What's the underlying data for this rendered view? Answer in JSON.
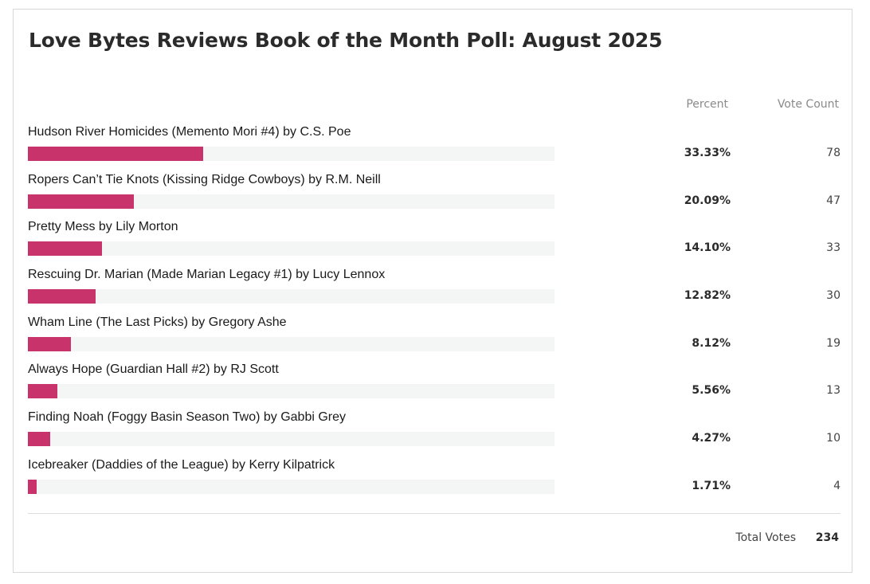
{
  "poll": {
    "title": "Love Bytes Reviews Book of the Month Poll: August 2025",
    "headers": {
      "percent": "Percent",
      "vote_count": "Vote Count"
    },
    "accent_color": "#c9336c",
    "track_color": "#f4f5f5",
    "options": [
      {
        "label": "Hudson River Homicides (Memento Mori #4) by C.S. Poe",
        "percent": "33.33%",
        "votes": "78",
        "share": 0.3333
      },
      {
        "label": "Ropers Can’t Tie Knots (Kissing Ridge Cowboys) by R.M. Neill",
        "percent": "20.09%",
        "votes": "47",
        "share": 0.2009
      },
      {
        "label": "Pretty Mess by Lily Morton",
        "percent": "14.10%",
        "votes": "33",
        "share": 0.141
      },
      {
        "label": "Rescuing Dr. Marian (Made Marian Legacy #1) by Lucy Lennox",
        "percent": "12.82%",
        "votes": "30",
        "share": 0.1282
      },
      {
        "label": "Wham Line (The Last Picks) by Gregory Ashe",
        "percent": "8.12%",
        "votes": "19",
        "share": 0.0812
      },
      {
        "label": "Always Hope (Guardian Hall #2) by RJ Scott",
        "percent": "5.56%",
        "votes": "13",
        "share": 0.0556
      },
      {
        "label": "Finding Noah (Foggy Basin Season Two) by Gabbi Grey",
        "percent": "4.27%",
        "votes": "10",
        "share": 0.0427
      },
      {
        "label": "Icebreaker (Daddies of the League) by Kerry Kilpatrick",
        "percent": "1.71%",
        "votes": "4",
        "share": 0.0171
      }
    ],
    "total": {
      "label": "Total Votes",
      "value": "234"
    }
  }
}
